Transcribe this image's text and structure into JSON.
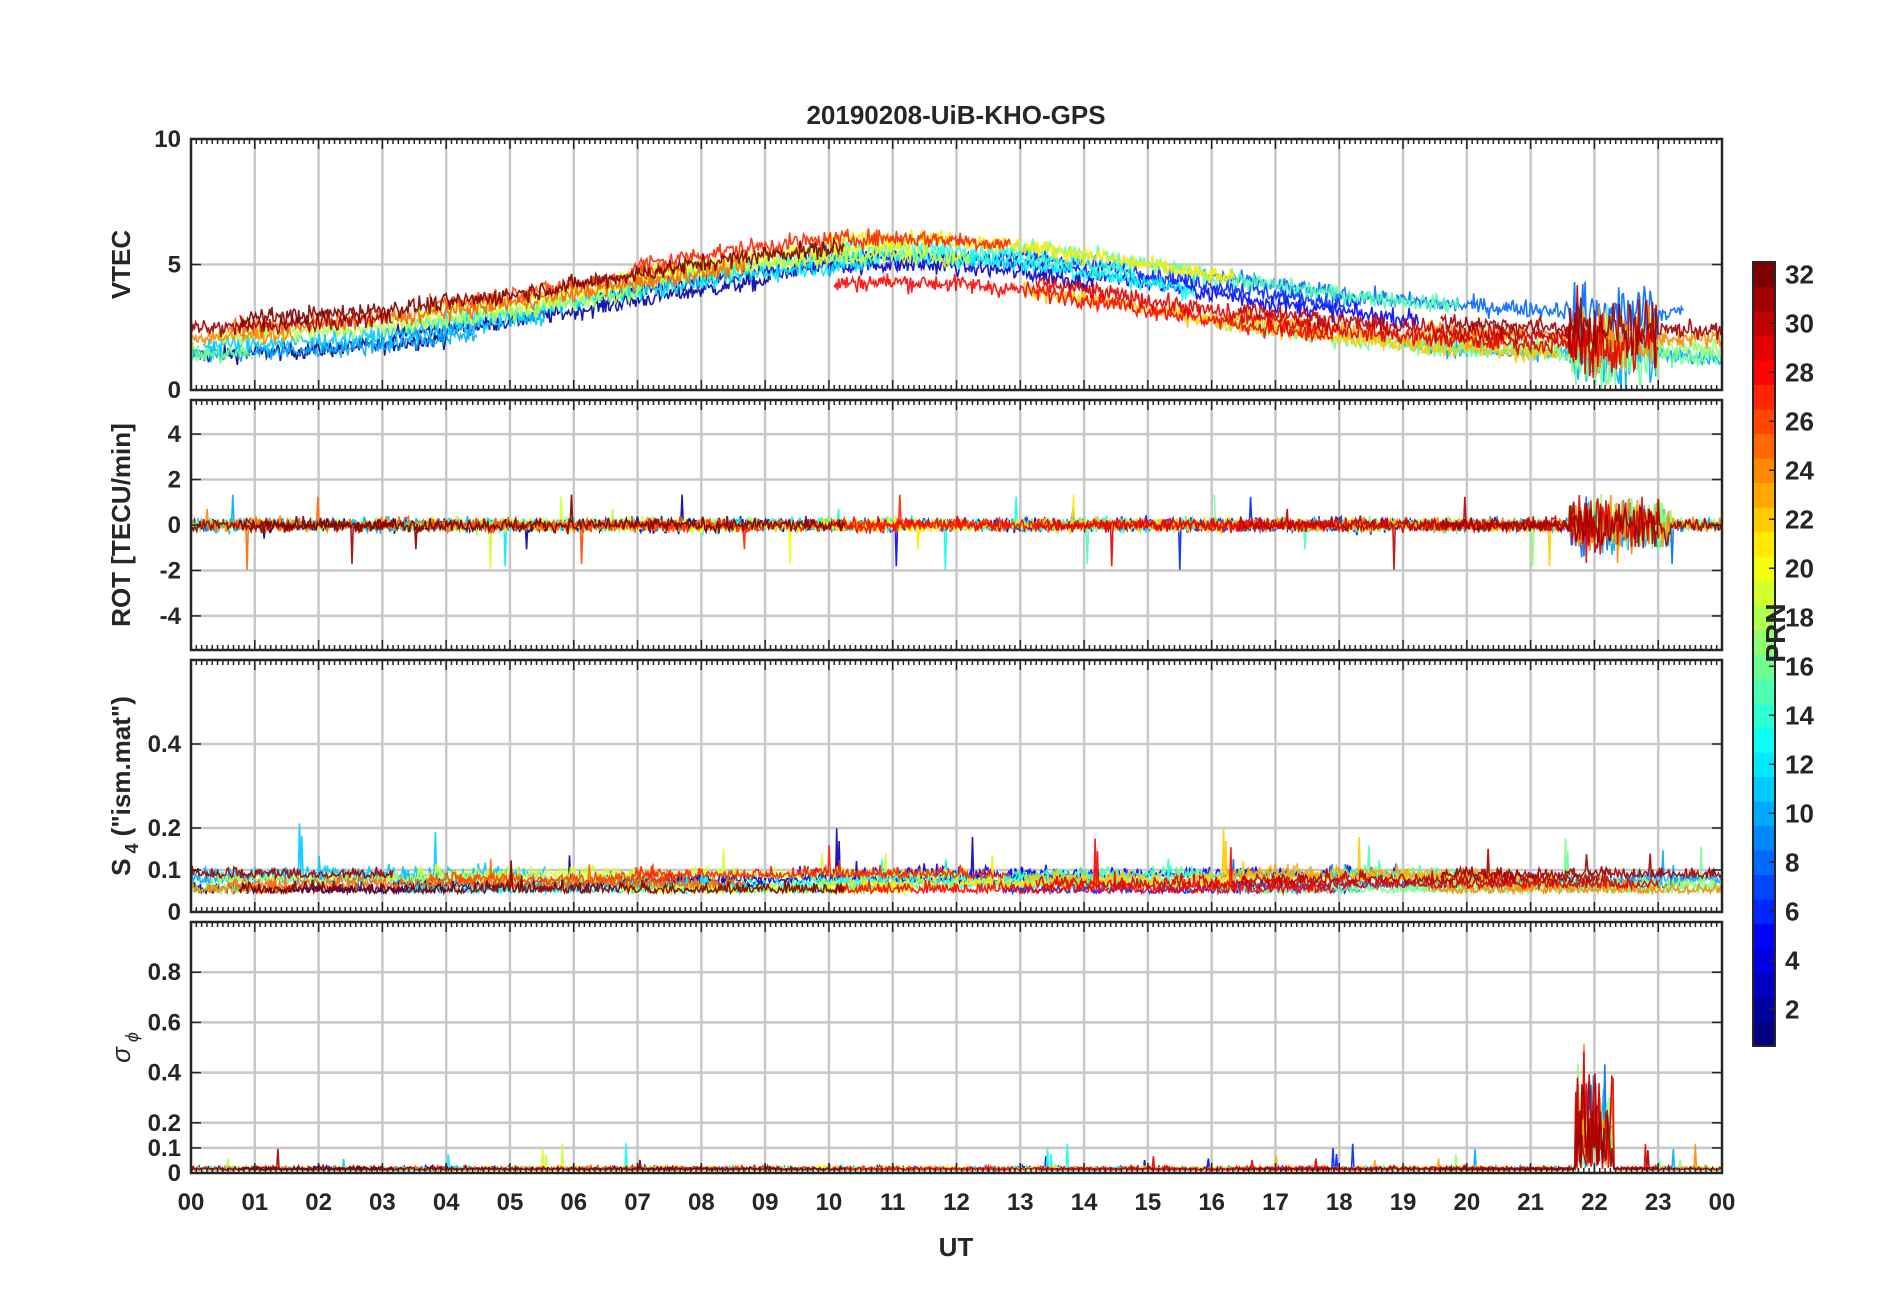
{
  "chart_data": {
    "type": "line",
    "title": "20190208-UiB-KHO-GPS",
    "xlabel": "UT",
    "x_tick_labels": [
      "00",
      "01",
      "02",
      "03",
      "04",
      "05",
      "06",
      "07",
      "08",
      "09",
      "10",
      "11",
      "12",
      "13",
      "14",
      "15",
      "16",
      "17",
      "18",
      "19",
      "20",
      "21",
      "22",
      "23",
      "00"
    ],
    "xlim_hours": [
      0,
      24
    ],
    "grid": true,
    "colormap": "jet",
    "colorbar": {
      "label": "PRN",
      "range": [
        1,
        32
      ],
      "tick_labels": [
        "2",
        "4",
        "6",
        "8",
        "10",
        "12",
        "14",
        "16",
        "18",
        "20",
        "22",
        "24",
        "26",
        "28",
        "30",
        "32"
      ],
      "placement": "right"
    },
    "panels": [
      {
        "id": "vtec",
        "ylabel": "VTEC",
        "ylim": [
          0,
          10
        ],
        "y_ticks": [
          0,
          5,
          10
        ],
        "y_tick_labels": [
          "0",
          "5",
          "10"
        ]
      },
      {
        "id": "rot",
        "ylabel": "ROT [TECU/min]",
        "ylim": [
          -5.5,
          5.5
        ],
        "y_ticks": [
          -4,
          -2,
          0,
          2,
          4
        ],
        "y_tick_labels": [
          "-4",
          "-2",
          "0",
          "2",
          "4"
        ]
      },
      {
        "id": "s4",
        "ylabel_main": "S",
        "ylabel_sub": "4",
        "ylabel_rest": " (\"ism.mat\")",
        "ylim": [
          0,
          0.6
        ],
        "y_ticks": [
          0,
          0.1,
          0.2,
          0.4
        ],
        "y_tick_labels": [
          "0",
          "0.1",
          "0.2",
          "0.4"
        ]
      },
      {
        "id": "sigphi",
        "ylabel_main": "σ",
        "ylabel_sub": "ϕ",
        "ylim": [
          0,
          1.0
        ],
        "y_ticks": [
          0,
          0.1,
          0.2,
          0.4,
          0.6,
          0.8
        ],
        "y_tick_labels": [
          "0",
          "0.1",
          "0.2",
          "0.4",
          "0.6",
          "0.8"
        ]
      }
    ]
  }
}
